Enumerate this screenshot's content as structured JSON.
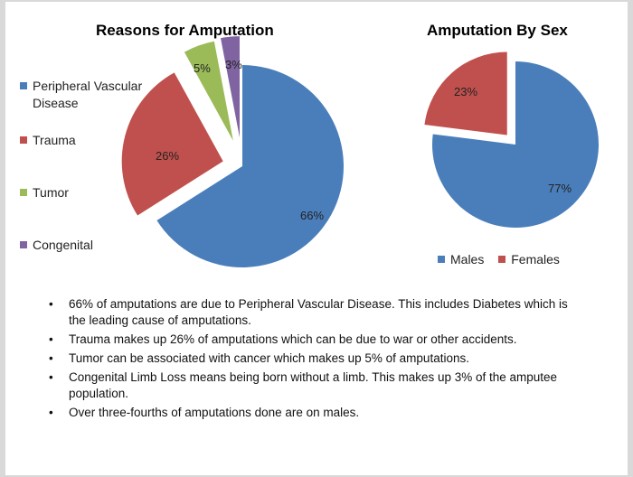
{
  "colors": {
    "pvd": "#4a7ebb",
    "trauma": "#c0504d",
    "tumor": "#9bbb59",
    "congenital": "#8064a2",
    "males": "#4a7ebb",
    "females": "#c0504d"
  },
  "chart_data": [
    {
      "type": "pie",
      "title": "Reasons for Amputation",
      "categories": [
        "Peripheral Vascular Disease",
        "Trauma",
        "Tumor",
        "Congenital"
      ],
      "values": [
        66,
        26,
        5,
        3
      ],
      "labels": [
        "66%",
        "26%",
        "5%",
        "3%"
      ],
      "legend": "left"
    },
    {
      "type": "pie",
      "title": "Amputation By Sex",
      "categories": [
        "Males",
        "Females"
      ],
      "values": [
        77,
        23
      ],
      "labels": [
        "77%",
        "23%"
      ],
      "legend": "bottom"
    }
  ],
  "bullets": [
    "66% of amputations are due to Peripheral Vascular Disease.  This includes Diabetes which is the leading cause of amputations.",
    "Trauma makes up 26% of amputations which can be due to war or other accidents.",
    "Tumor can be associated with cancer which makes up 5% of amputations.",
    "Congenital Limb Loss means being born without a limb.  This makes up 3% of the amputee population.",
    "Over three-fourths of amputations done are on males."
  ],
  "bullet_glyph": "•"
}
